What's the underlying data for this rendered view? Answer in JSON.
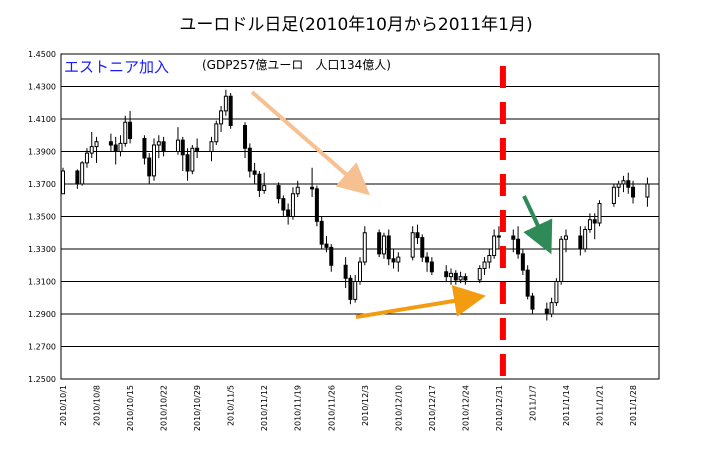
{
  "chart_data": {
    "type": "candlestick",
    "title": "ユーロドル日足(2010年10月から2011年1月)",
    "annotation_label": "エストニア加入",
    "annotation_note": "(GDP257億ユーロ　人口134億人)",
    "ylim": [
      1.25,
      1.45
    ],
    "yticks": [
      "1.4500",
      "1.4300",
      "1.4100",
      "1.3900",
      "1.3700",
      "1.3500",
      "1.3300",
      "1.3100",
      "1.2900",
      "1.2700",
      "1.2500"
    ],
    "grid": "horizontal",
    "x_tick_labels": [
      "2010/10/1",
      "2010/10/8",
      "2010/10/15",
      "2010/10/22",
      "2010/10/29",
      "2010/11/5",
      "2010/11/12",
      "2010/11/19",
      "2010/11/26",
      "2010/12/3",
      "2010/12/10",
      "2010/12/17",
      "2010/12/24",
      "2010/12/31",
      "2011/1/7",
      "2011/1/14",
      "2011/1/21",
      "2011/1/28"
    ],
    "colors": {
      "candle": "#000000",
      "grid": "#000000",
      "title": "#000000",
      "label_blue": "#1a1aff",
      "event_line": "#ff0000",
      "arrow_orange_light": "#f7c090",
      "arrow_orange_dark": "#f39c12",
      "arrow_green": "#2e8b57"
    },
    "event_date": "2010/12/31",
    "ohlc": [
      [
        "2010/10/1",
        1.364,
        1.38,
        1.364,
        1.378
      ],
      [
        "2010/10/4",
        1.378,
        1.379,
        1.367,
        1.37
      ],
      [
        "2010/10/5",
        1.37,
        1.384,
        1.369,
        1.383
      ],
      [
        "2010/10/6",
        1.383,
        1.392,
        1.38,
        1.389
      ],
      [
        "2010/10/7",
        1.389,
        1.402,
        1.386,
        1.393
      ],
      [
        "2010/10/8",
        1.393,
        1.399,
        1.383,
        1.396
      ],
      [
        "2010/10/11",
        1.396,
        1.401,
        1.39,
        1.394
      ],
      [
        "2010/10/12",
        1.394,
        1.399,
        1.382,
        1.39
      ],
      [
        "2010/10/13",
        1.39,
        1.4,
        1.387,
        1.395
      ],
      [
        "2010/10/14",
        1.395,
        1.412,
        1.393,
        1.408
      ],
      [
        "2010/10/15",
        1.408,
        1.415,
        1.395,
        1.398
      ],
      [
        "2010/10/18",
        1.398,
        1.4,
        1.382,
        1.386
      ],
      [
        "2010/10/19",
        1.386,
        1.389,
        1.37,
        1.375
      ],
      [
        "2010/10/20",
        1.375,
        1.398,
        1.372,
        1.394
      ],
      [
        "2010/10/21",
        1.394,
        1.4,
        1.386,
        1.396
      ],
      [
        "2010/10/22",
        1.396,
        1.399,
        1.387,
        1.39
      ],
      [
        "2010/10/25",
        1.39,
        1.405,
        1.388,
        1.397
      ],
      [
        "2010/10/26",
        1.397,
        1.399,
        1.378,
        1.388
      ],
      [
        "2010/10/27",
        1.388,
        1.392,
        1.372,
        1.378
      ],
      [
        "2010/10/28",
        1.378,
        1.394,
        1.376,
        1.392
      ],
      [
        "2010/10/29",
        1.392,
        1.398,
        1.386,
        1.39
      ],
      [
        "2010/11/1",
        1.39,
        1.399,
        1.384,
        1.396
      ],
      [
        "2010/11/2",
        1.396,
        1.409,
        1.394,
        1.407
      ],
      [
        "2010/11/3",
        1.407,
        1.418,
        1.402,
        1.415
      ],
      [
        "2010/11/4",
        1.415,
        1.428,
        1.412,
        1.424
      ],
      [
        "2010/11/5",
        1.424,
        1.426,
        1.404,
        1.406
      ],
      [
        "2010/11/8",
        1.406,
        1.408,
        1.386,
        1.392
      ],
      [
        "2010/11/9",
        1.392,
        1.395,
        1.374,
        1.378
      ],
      [
        "2010/11/10",
        1.378,
        1.383,
        1.37,
        1.376
      ],
      [
        "2010/11/11",
        1.376,
        1.378,
        1.362,
        1.366
      ],
      [
        "2010/11/12",
        1.366,
        1.377,
        1.364,
        1.369
      ],
      [
        "2010/11/15",
        1.369,
        1.371,
        1.358,
        1.361
      ],
      [
        "2010/11/16",
        1.361,
        1.363,
        1.35,
        1.354
      ],
      [
        "2010/11/17",
        1.354,
        1.358,
        1.345,
        1.35
      ],
      [
        "2010/11/18",
        1.35,
        1.368,
        1.348,
        1.364
      ],
      [
        "2010/11/19",
        1.364,
        1.372,
        1.362,
        1.368
      ],
      [
        "2010/11/22",
        1.368,
        1.38,
        1.362,
        1.367
      ],
      [
        "2010/11/23",
        1.367,
        1.369,
        1.344,
        1.347
      ],
      [
        "2010/11/24",
        1.347,
        1.35,
        1.33,
        1.333
      ],
      [
        "2010/11/25",
        1.333,
        1.338,
        1.328,
        1.331
      ],
      [
        "2010/11/26",
        1.331,
        1.333,
        1.316,
        1.32
      ],
      [
        "2010/11/29",
        1.32,
        1.325,
        1.306,
        1.312
      ],
      [
        "2010/11/30",
        1.312,
        1.314,
        1.296,
        1.299
      ],
      [
        "2010/12/1",
        1.299,
        1.314,
        1.297,
        1.31
      ],
      [
        "2010/12/2",
        1.31,
        1.325,
        1.308,
        1.322
      ],
      [
        "2010/12/3",
        1.322,
        1.344,
        1.32,
        1.34
      ],
      [
        "2010/12/6",
        1.34,
        1.342,
        1.325,
        1.327
      ],
      [
        "2010/12/7",
        1.327,
        1.34,
        1.324,
        1.338
      ],
      [
        "2010/12/8",
        1.338,
        1.342,
        1.32,
        1.324
      ],
      [
        "2010/12/9",
        1.324,
        1.33,
        1.318,
        1.322
      ],
      [
        "2010/12/10",
        1.322,
        1.328,
        1.316,
        1.325
      ],
      [
        "2010/12/13",
        1.325,
        1.344,
        1.323,
        1.34
      ],
      [
        "2010/12/14",
        1.34,
        1.345,
        1.333,
        1.337
      ],
      [
        "2010/12/15",
        1.337,
        1.339,
        1.322,
        1.325
      ],
      [
        "2010/12/16",
        1.325,
        1.328,
        1.316,
        1.322
      ],
      [
        "2010/12/17",
        1.322,
        1.325,
        1.314,
        1.316
      ],
      [
        "2010/12/20",
        1.316,
        1.32,
        1.31,
        1.313
      ],
      [
        "2010/12/21",
        1.313,
        1.318,
        1.308,
        1.315
      ],
      [
        "2010/12/22",
        1.315,
        1.317,
        1.308,
        1.311
      ],
      [
        "2010/12/23",
        1.311,
        1.316,
        1.309,
        1.313
      ],
      [
        "2010/12/24",
        1.313,
        1.315,
        1.308,
        1.311
      ],
      [
        "2010/12/27",
        1.311,
        1.32,
        1.309,
        1.318
      ],
      [
        "2010/12/28",
        1.318,
        1.325,
        1.314,
        1.322
      ],
      [
        "2010/12/29",
        1.322,
        1.33,
        1.318,
        1.326
      ],
      [
        "2010/12/30",
        1.326,
        1.342,
        1.324,
        1.338
      ],
      [
        "2010/12/31",
        1.338,
        1.344,
        1.33,
        1.338
      ],
      [
        "2011/1/3",
        1.338,
        1.342,
        1.328,
        1.336
      ],
      [
        "2011/1/4",
        1.336,
        1.344,
        1.324,
        1.327
      ],
      [
        "2011/1/5",
        1.327,
        1.33,
        1.314,
        1.317
      ],
      [
        "2011/1/6",
        1.317,
        1.32,
        1.299,
        1.301
      ],
      [
        "2011/1/7",
        1.301,
        1.303,
        1.29,
        1.293
      ],
      [
        "2011/1/10",
        1.293,
        1.297,
        1.286,
        1.29
      ],
      [
        "2011/1/11",
        1.29,
        1.3,
        1.288,
        1.297
      ],
      [
        "2011/1/12",
        1.297,
        1.312,
        1.295,
        1.31
      ],
      [
        "2011/1/13",
        1.31,
        1.338,
        1.308,
        1.336
      ],
      [
        "2011/1/14",
        1.336,
        1.342,
        1.328,
        1.338
      ],
      [
        "2011/1/17",
        1.338,
        1.344,
        1.326,
        1.33
      ],
      [
        "2011/1/18",
        1.33,
        1.344,
        1.328,
        1.342
      ],
      [
        "2011/1/19",
        1.342,
        1.352,
        1.34,
        1.348
      ],
      [
        "2011/1/20",
        1.348,
        1.352,
        1.336,
        1.346
      ],
      [
        "2011/1/21",
        1.346,
        1.36,
        1.344,
        1.358
      ],
      [
        "2011/1/24",
        1.358,
        1.37,
        1.356,
        1.368
      ],
      [
        "2011/1/25",
        1.368,
        1.372,
        1.362,
        1.37
      ],
      [
        "2011/1/26",
        1.37,
        1.375,
        1.365,
        1.372
      ],
      [
        "2011/1/27",
        1.372,
        1.377,
        1.364,
        1.368
      ],
      [
        "2011/1/28",
        1.368,
        1.372,
        1.358,
        1.362
      ],
      [
        "2011/1/31",
        1.362,
        1.374,
        1.356,
        1.37
      ]
    ]
  }
}
